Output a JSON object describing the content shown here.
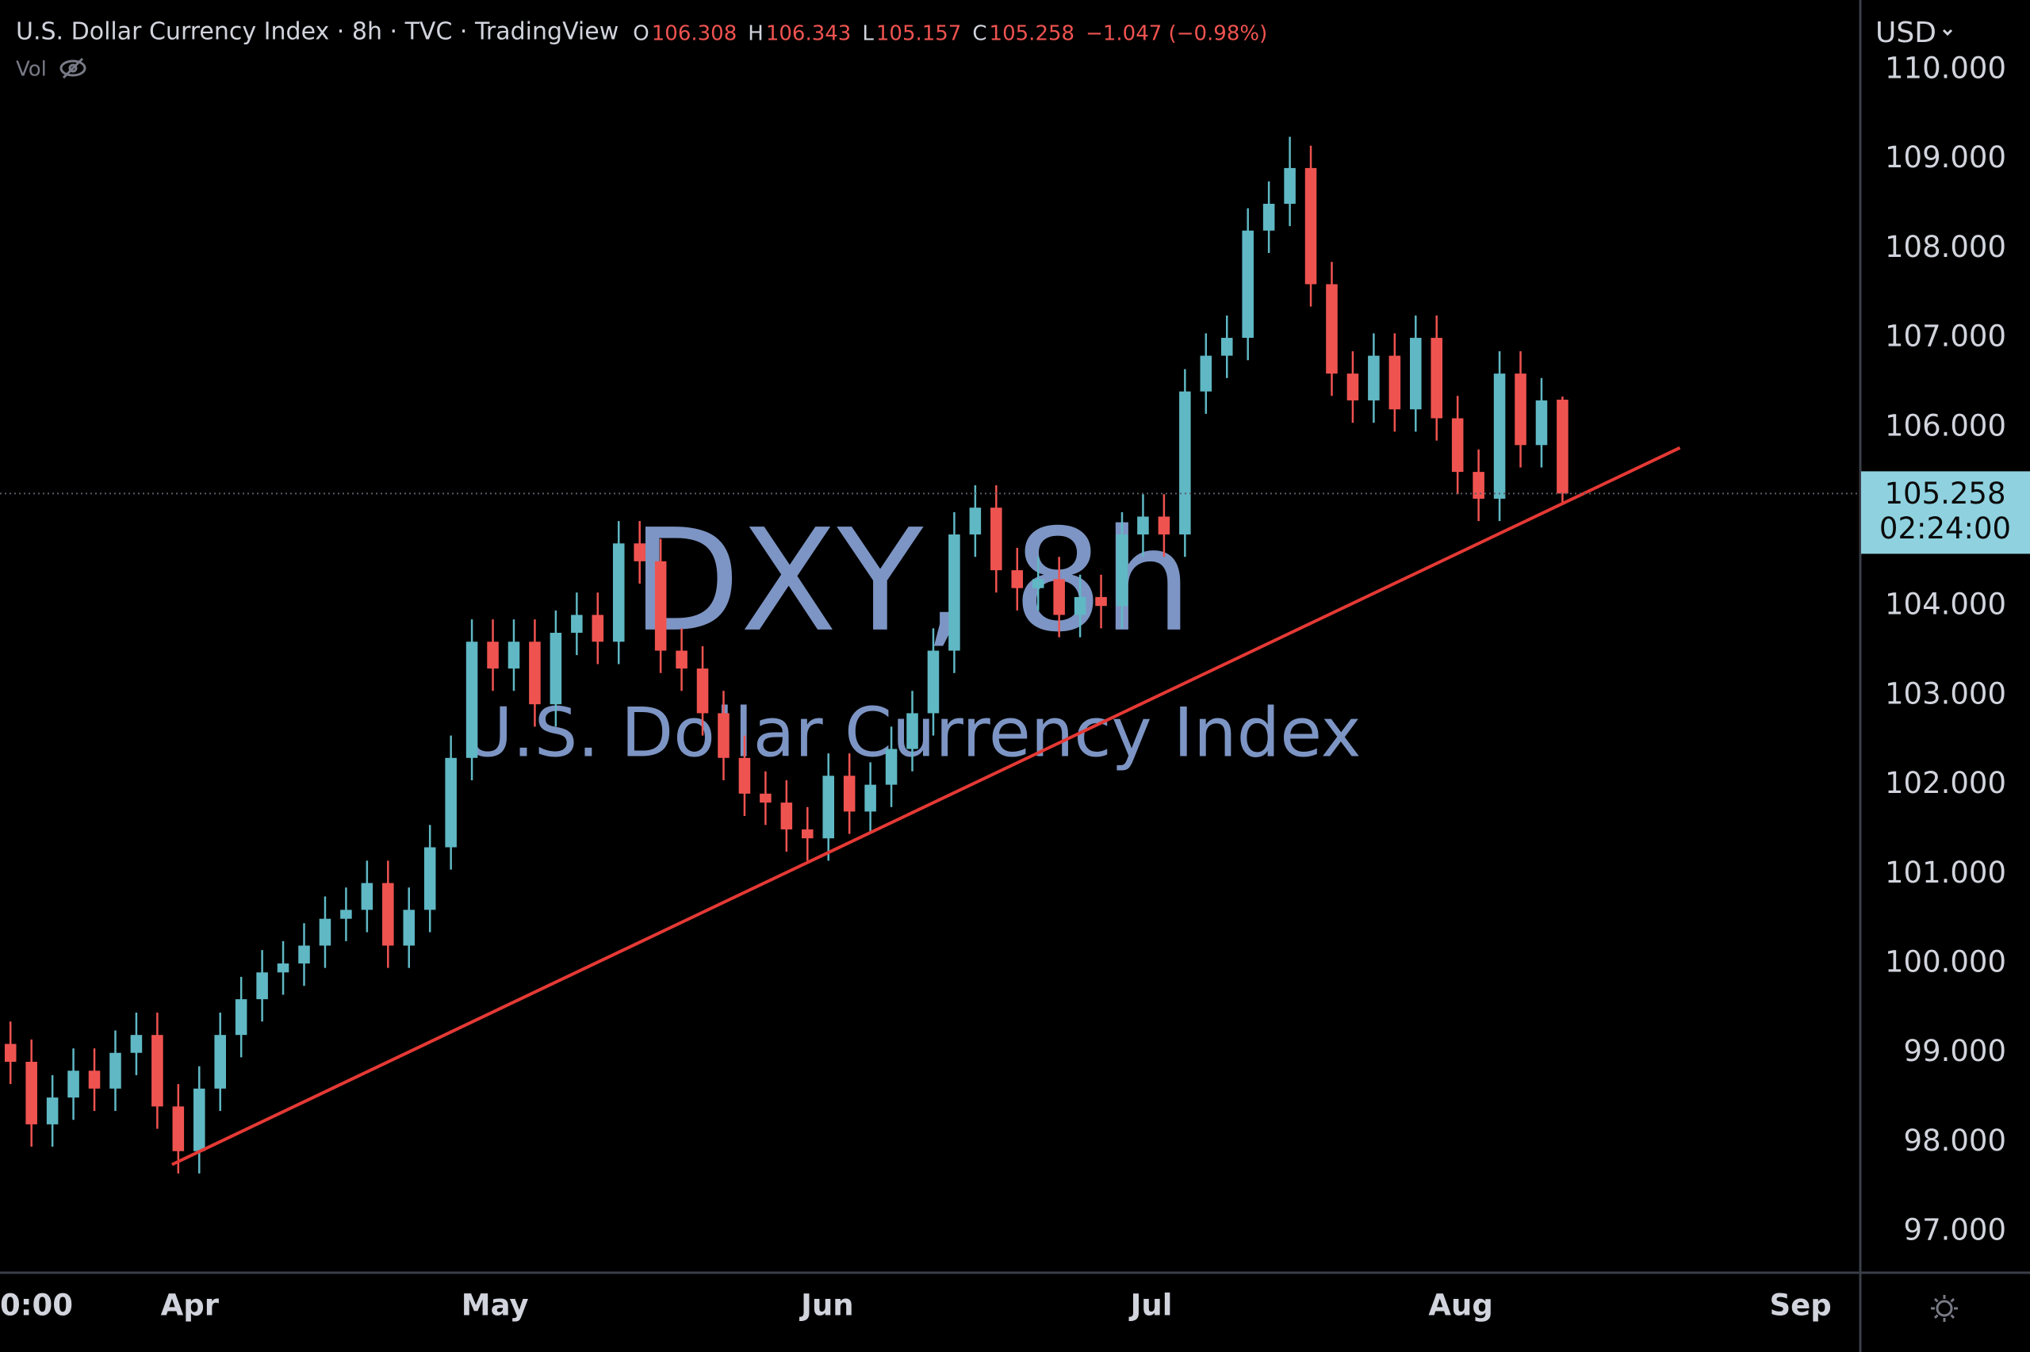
{
  "chart_data": {
    "type": "candlestick",
    "title": "U.S. Dollar Currency Index · 8h · TVC · TradingView",
    "ohlc_letters": [
      "O",
      "H",
      "L",
      "C"
    ],
    "change_text": "−1.047 (−0.98%)",
    "volume_label": "Vol",
    "watermark_title": "DXY, 8h",
    "watermark_subtitle": "U.S. Dollar Currency Index",
    "currency": "USD",
    "countdown": "02:24:00",
    "up_color": "#5fb8c4",
    "down_color": "#ef5350",
    "grid": false,
    "candles": {
      "x": [
        1,
        3,
        5,
        7,
        9,
        11,
        13,
        15,
        17,
        19,
        21,
        23,
        25,
        27,
        29,
        31,
        33,
        35,
        37,
        39,
        41,
        43,
        45,
        47,
        49,
        51,
        53,
        55,
        57,
        59,
        61,
        63,
        65,
        67,
        69,
        71,
        73,
        75,
        77,
        79,
        81,
        83,
        85,
        87,
        89,
        91,
        93,
        95,
        97,
        99,
        101,
        103,
        105,
        107,
        109,
        111,
        113,
        115,
        117,
        119,
        121,
        123,
        125,
        127,
        129,
        131,
        133,
        135,
        137,
        139,
        141,
        143,
        145,
        147,
        149
      ],
      "open": [
        99.1,
        98.9,
        98.2,
        98.5,
        98.8,
        98.6,
        99.0,
        99.2,
        98.4,
        97.9,
        98.6,
        99.2,
        99.6,
        99.9,
        100.0,
        100.2,
        100.5,
        100.6,
        100.9,
        100.2,
        100.6,
        101.3,
        102.3,
        103.6,
        103.3,
        103.6,
        102.9,
        103.7,
        103.9,
        103.6,
        104.7,
        104.5,
        103.5,
        103.3,
        102.8,
        102.3,
        101.9,
        101.8,
        101.5,
        101.4,
        102.1,
        101.7,
        102.0,
        102.4,
        102.8,
        103.5,
        104.8,
        105.1,
        104.4,
        104.2,
        104.3,
        103.9,
        104.1,
        104.0,
        104.8,
        105.0,
        104.8,
        106.4,
        106.8,
        107.0,
        108.2,
        108.5,
        108.9,
        107.6,
        106.6,
        106.3,
        106.8,
        106.2,
        107.0,
        106.1,
        105.5,
        105.2,
        106.6,
        105.8,
        106.308
      ],
      "high": [
        99.35,
        99.15,
        98.75,
        99.05,
        99.05,
        99.25,
        99.45,
        99.45,
        98.65,
        98.85,
        99.45,
        99.85,
        100.15,
        100.25,
        100.45,
        100.75,
        100.85,
        101.15,
        101.15,
        100.85,
        101.55,
        102.55,
        103.85,
        103.85,
        103.85,
        103.85,
        103.95,
        104.15,
        104.15,
        104.95,
        104.95,
        104.75,
        103.75,
        103.55,
        103.05,
        102.55,
        102.15,
        102.05,
        101.75,
        102.35,
        102.35,
        102.25,
        102.65,
        103.05,
        103.75,
        105.05,
        105.35,
        105.35,
        104.65,
        104.55,
        104.55,
        104.35,
        104.35,
        105.05,
        105.25,
        105.25,
        106.65,
        107.05,
        107.25,
        108.45,
        108.75,
        109.25,
        109.15,
        107.85,
        106.85,
        107.05,
        107.05,
        107.25,
        107.25,
        106.35,
        105.75,
        106.85,
        106.85,
        106.55,
        106.343
      ],
      "low": [
        98.65,
        97.95,
        97.95,
        98.25,
        98.35,
        98.35,
        98.75,
        98.15,
        97.65,
        97.65,
        98.35,
        98.95,
        99.35,
        99.65,
        99.75,
        99.95,
        100.25,
        100.35,
        99.95,
        99.95,
        100.35,
        101.05,
        102.05,
        103.05,
        103.05,
        102.65,
        102.65,
        103.45,
        103.35,
        103.35,
        104.25,
        103.25,
        103.05,
        102.55,
        102.05,
        101.65,
        101.55,
        101.25,
        101.15,
        101.15,
        101.45,
        101.45,
        101.75,
        102.15,
        102.55,
        103.25,
        104.55,
        104.15,
        103.95,
        103.95,
        103.65,
        103.65,
        103.75,
        103.75,
        104.55,
        104.55,
        104.55,
        106.15,
        106.55,
        106.75,
        107.95,
        108.25,
        107.35,
        106.35,
        106.05,
        106.05,
        105.95,
        105.95,
        105.85,
        105.25,
        104.95,
        104.95,
        105.55,
        105.55,
        105.157
      ],
      "close": [
        98.9,
        98.2,
        98.5,
        98.8,
        98.6,
        99.0,
        99.2,
        98.4,
        97.9,
        98.6,
        99.2,
        99.6,
        99.9,
        100.0,
        100.2,
        100.5,
        100.6,
        100.9,
        100.2,
        100.6,
        101.3,
        102.3,
        103.6,
        103.3,
        103.6,
        102.9,
        103.7,
        103.9,
        103.6,
        104.7,
        104.5,
        103.5,
        103.3,
        102.8,
        102.3,
        101.9,
        101.8,
        101.5,
        101.4,
        102.1,
        101.7,
        102.0,
        102.4,
        102.8,
        103.5,
        104.8,
        105.1,
        104.4,
        104.2,
        104.3,
        103.9,
        104.1,
        104.0,
        104.8,
        105.0,
        104.8,
        106.4,
        106.8,
        107.0,
        108.2,
        108.5,
        108.9,
        107.6,
        106.6,
        106.3,
        106.8,
        106.2,
        107.0,
        106.1,
        105.5,
        105.2,
        106.6,
        105.8,
        106.3,
        105.258
      ]
    },
    "trendline": {
      "x": [
        16.4,
        160.2
      ],
      "y": [
        97.75,
        105.77
      ],
      "color": "#e53935"
    },
    "xlim": [
      0,
      177.4
    ],
    "xticks": [
      {
        "value": 0,
        "label": "0:00"
      },
      {
        "value": 18.1,
        "label": "Apr"
      },
      {
        "value": 47.2,
        "label": "May"
      },
      {
        "value": 78.9,
        "label": "Jun"
      },
      {
        "value": 109.8,
        "label": "Jul"
      },
      {
        "value": 139.3,
        "label": "Aug"
      },
      {
        "value": 171.7,
        "label": "Sep"
      }
    ],
    "ylim": [
      96.54,
      110.78
    ],
    "yticks": [
      {
        "value": 97,
        "label": "97.000"
      },
      {
        "value": 98,
        "label": "98.000"
      },
      {
        "value": 99,
        "label": "99.000"
      },
      {
        "value": 100,
        "label": "100.000"
      },
      {
        "value": 101,
        "label": "101.000"
      },
      {
        "value": 102,
        "label": "102.000"
      },
      {
        "value": 103,
        "label": "103.000"
      },
      {
        "value": 104,
        "label": "104.000"
      },
      {
        "value": 106,
        "label": "106.000"
      },
      {
        "value": 107,
        "label": "107.000"
      },
      {
        "value": 108,
        "label": "108.000"
      },
      {
        "value": 109,
        "label": "109.000"
      },
      {
        "value": 110,
        "label": "110.000"
      }
    ]
  }
}
